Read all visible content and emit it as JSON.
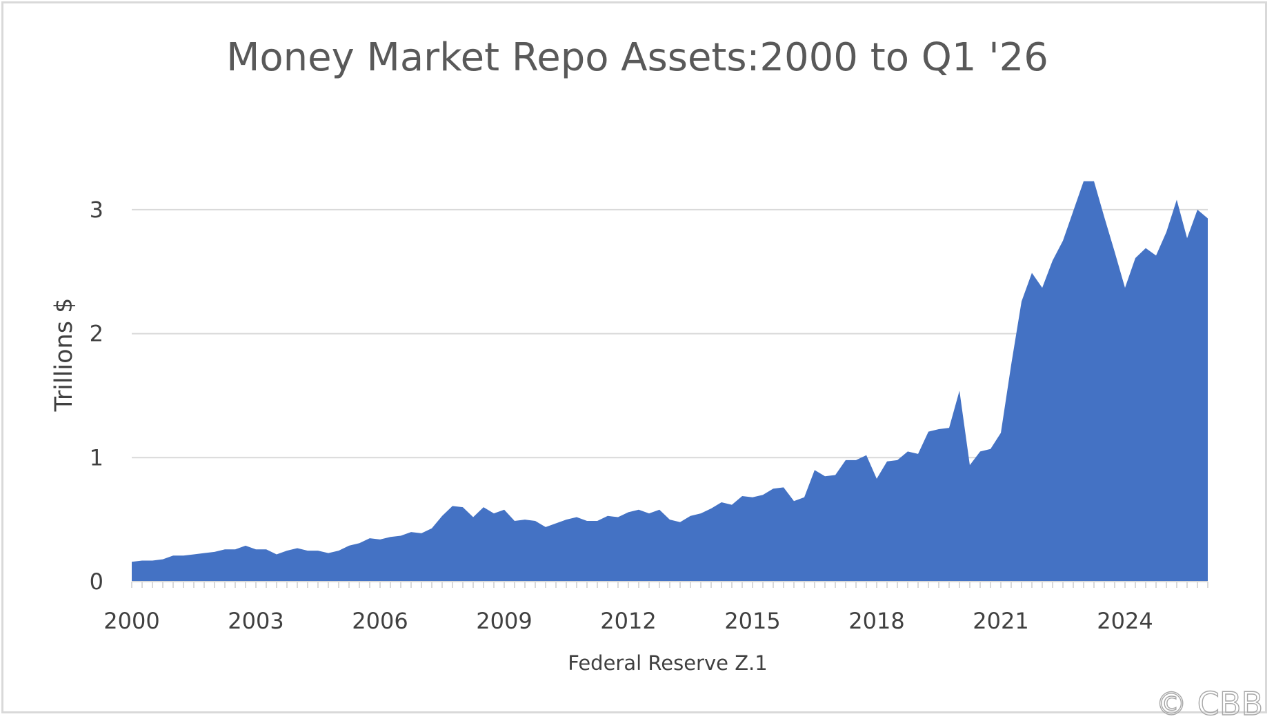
{
  "chart_data": {
    "type": "area",
    "title": "Money Market Repo Assets:2000 to Q1 '26",
    "ylabel": "Trillions $",
    "xlabel": "Federal Reserve Z.1",
    "watermark": "© CBB",
    "xlim": [
      2000.0,
      2026.0
    ],
    "ylim": [
      0,
      3.3
    ],
    "yticks": [
      0,
      1,
      2,
      3
    ],
    "xticks": [
      2000,
      2003,
      2006,
      2009,
      2012,
      2015,
      2018,
      2021,
      2024
    ],
    "grid": true,
    "legend": "none",
    "color": "#4472C4",
    "series": [
      {
        "x": [
          2000.0,
          2000.25,
          2000.5,
          2000.75,
          2001.0,
          2001.25,
          2001.5,
          2001.75,
          2002.0,
          2002.25,
          2002.5,
          2002.75,
          2003.0,
          2003.25,
          2003.5,
          2003.75,
          2004.0,
          2004.25,
          2004.5,
          2004.75,
          2005.0,
          2005.25,
          2005.5,
          2005.75,
          2006.0,
          2006.25,
          2006.5,
          2006.75,
          2007.0,
          2007.25,
          2007.5,
          2007.75,
          2008.0,
          2008.25,
          2008.5,
          2008.75,
          2009.0,
          2009.25,
          2009.5,
          2009.75,
          2010.0,
          2010.25,
          2010.5,
          2010.75,
          2011.0,
          2011.25,
          2011.5,
          2011.75,
          2012.0,
          2012.25,
          2012.5,
          2012.75,
          2013.0,
          2013.25,
          2013.5,
          2013.75,
          2014.0,
          2014.25,
          2014.5,
          2014.75,
          2015.0,
          2015.25,
          2015.5,
          2015.75,
          2016.0,
          2016.25,
          2016.5,
          2016.75,
          2017.0,
          2017.25,
          2017.5,
          2017.75,
          2018.0,
          2018.25,
          2018.5,
          2018.75,
          2019.0,
          2019.25,
          2019.5,
          2019.75,
          2020.0,
          2020.25,
          2020.5,
          2020.75,
          2021.0,
          2021.25,
          2021.5,
          2021.75,
          2022.0,
          2022.25,
          2022.5,
          2022.75,
          2023.0,
          2023.25,
          2023.5,
          2023.75,
          2024.0,
          2024.25,
          2024.5,
          2024.75,
          2025.0,
          2025.25,
          2025.5,
          2025.75,
          2026.0
        ],
        "values": [
          0.16,
          0.17,
          0.17,
          0.18,
          0.21,
          0.21,
          0.22,
          0.23,
          0.24,
          0.26,
          0.26,
          0.29,
          0.26,
          0.26,
          0.22,
          0.25,
          0.27,
          0.25,
          0.25,
          0.23,
          0.25,
          0.29,
          0.31,
          0.35,
          0.34,
          0.36,
          0.37,
          0.4,
          0.39,
          0.43,
          0.53,
          0.61,
          0.6,
          0.52,
          0.6,
          0.55,
          0.58,
          0.49,
          0.5,
          0.49,
          0.44,
          0.47,
          0.5,
          0.52,
          0.49,
          0.49,
          0.53,
          0.52,
          0.56,
          0.58,
          0.55,
          0.58,
          0.5,
          0.48,
          0.53,
          0.55,
          0.59,
          0.64,
          0.62,
          0.69,
          0.68,
          0.7,
          0.75,
          0.76,
          0.65,
          0.68,
          0.9,
          0.85,
          0.86,
          0.98,
          0.98,
          1.02,
          0.83,
          0.97,
          0.98,
          1.05,
          1.03,
          1.21,
          1.23,
          1.24,
          1.54,
          0.94,
          1.05,
          1.07,
          1.2,
          1.75,
          2.26,
          2.49,
          2.37,
          2.59,
          2.75,
          2.99,
          3.23,
          3.23,
          2.94,
          2.66,
          2.37,
          2.61,
          2.69,
          2.63,
          2.82,
          3.08,
          2.77,
          3.0,
          2.93
        ]
      }
    ]
  }
}
